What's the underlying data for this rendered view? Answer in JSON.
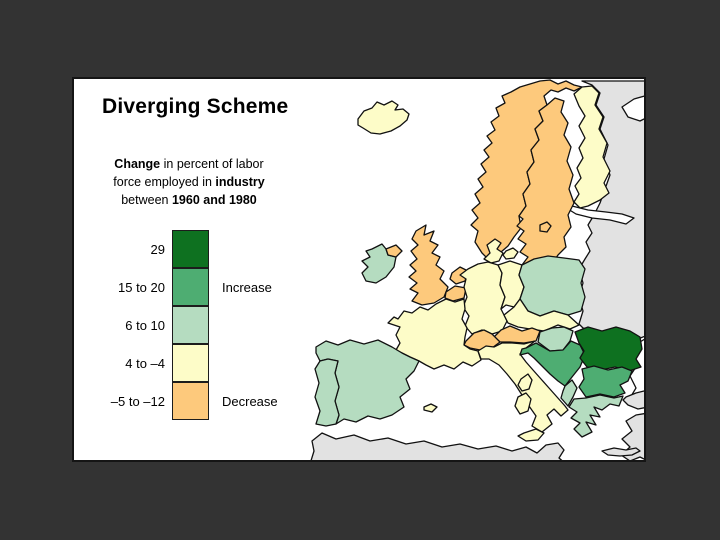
{
  "title": "Diverging Scheme",
  "subtitle_lines": [
    [
      {
        "t": "Change",
        "b": 1
      },
      {
        "t": " in percent of labor",
        "b": 0
      }
    ],
    [
      {
        "t": "force employed in ",
        "b": 0
      },
      {
        "t": "industry",
        "b": 1
      }
    ],
    [
      {
        "t": "between ",
        "b": 0
      },
      {
        "t": "1960 and 1980",
        "b": 1
      }
    ]
  ],
  "legend": {
    "items": [
      {
        "label": "29",
        "color": "#0e7120",
        "annotation": ""
      },
      {
        "label": "15 to 20",
        "color": "#4ead72",
        "annotation": "Increase"
      },
      {
        "label": "6 to 10",
        "color": "#b5dcc0",
        "annotation": ""
      },
      {
        "label": "4 to –4",
        "color": "#fdfcc8",
        "annotation": ""
      },
      {
        "label": "–5 to –12",
        "color": "#fdc97c",
        "annotation": "Decrease"
      }
    ]
  },
  "colors": {
    "page_background": "#333333",
    "panel_background": "#ffffff",
    "panel_border": "#151515",
    "outline": "#111111",
    "sea": "#ffffff"
  },
  "chart_data": {
    "type": "choropleth-map",
    "title": "Diverging Scheme",
    "variable": "Change in percent of labor force employed in industry between 1960 and 1980",
    "legend_classes": [
      {
        "range": "29",
        "direction": "Increase",
        "color": "#0e7120"
      },
      {
        "range": "15 to 20",
        "direction": "Increase",
        "color": "#4ead72"
      },
      {
        "range": "6 to 10",
        "direction": "Increase",
        "color": "#b5dcc0"
      },
      {
        "range": "4 to -4",
        "direction": "",
        "color": "#fdfcc8"
      },
      {
        "range": "-5 to -12",
        "direction": "Decrease",
        "color": "#fdc97c"
      }
    ],
    "no_data_color": "#e2e2e2",
    "categories": {
      "29": "#0e7120",
      "15 to 20": "#4ead72",
      "6 to 10": "#b5dcc0",
      "4 to -4": "#fdfcc8",
      "-5 to -12": "#fdc97c",
      "no-data": "#e2e2e2"
    },
    "countries": [
      {
        "id": "romania",
        "category": "29"
      },
      {
        "id": "yugoslavia",
        "category": "15 to 20"
      },
      {
        "id": "bulgaria",
        "category": "15 to 20"
      },
      {
        "id": "ireland",
        "category": "6 to 10"
      },
      {
        "id": "spain",
        "category": "6 to 10"
      },
      {
        "id": "portugal",
        "category": "6 to 10"
      },
      {
        "id": "poland",
        "category": "6 to 10"
      },
      {
        "id": "hungary",
        "category": "6 to 10"
      },
      {
        "id": "albania",
        "category": "6 to 10"
      },
      {
        "id": "greece",
        "category": "6 to 10"
      },
      {
        "id": "iceland",
        "category": "4 to -4"
      },
      {
        "id": "finland",
        "category": "4 to -4"
      },
      {
        "id": "denmark",
        "category": "4 to -4"
      },
      {
        "id": "zealand",
        "category": "4 to -4"
      },
      {
        "id": "west-germany",
        "category": "4 to -4"
      },
      {
        "id": "east-germany",
        "category": "4 to -4"
      },
      {
        "id": "france",
        "category": "4 to -4"
      },
      {
        "id": "czechoslovakia",
        "category": "4 to -4"
      },
      {
        "id": "italy",
        "category": "4 to -4"
      },
      {
        "id": "sicily",
        "category": "4 to -4"
      },
      {
        "id": "sardinia",
        "category": "4 to -4"
      },
      {
        "id": "corsica",
        "category": "4 to -4"
      },
      {
        "id": "balearic",
        "category": "4 to -4"
      },
      {
        "id": "norway",
        "category": "-5 to -12"
      },
      {
        "id": "sweden",
        "category": "-5 to -12"
      },
      {
        "id": "gotland",
        "category": "-5 to -12"
      },
      {
        "id": "united-kingdom",
        "category": "-5 to -12"
      },
      {
        "id": "northern-ireland",
        "category": "-5 to -12"
      },
      {
        "id": "netherlands",
        "category": "-5 to -12"
      },
      {
        "id": "belgium",
        "category": "-5 to -12"
      },
      {
        "id": "switzerland",
        "category": "-5 to -12"
      },
      {
        "id": "austria",
        "category": "-5 to -12"
      },
      {
        "id": "ussr",
        "category": "no-data"
      },
      {
        "id": "turkey-europe",
        "category": "no-data"
      },
      {
        "id": "turkey-anatolia",
        "category": "no-data"
      },
      {
        "id": "north-africa",
        "category": "no-data"
      },
      {
        "id": "crete",
        "category": "no-data"
      }
    ]
  }
}
